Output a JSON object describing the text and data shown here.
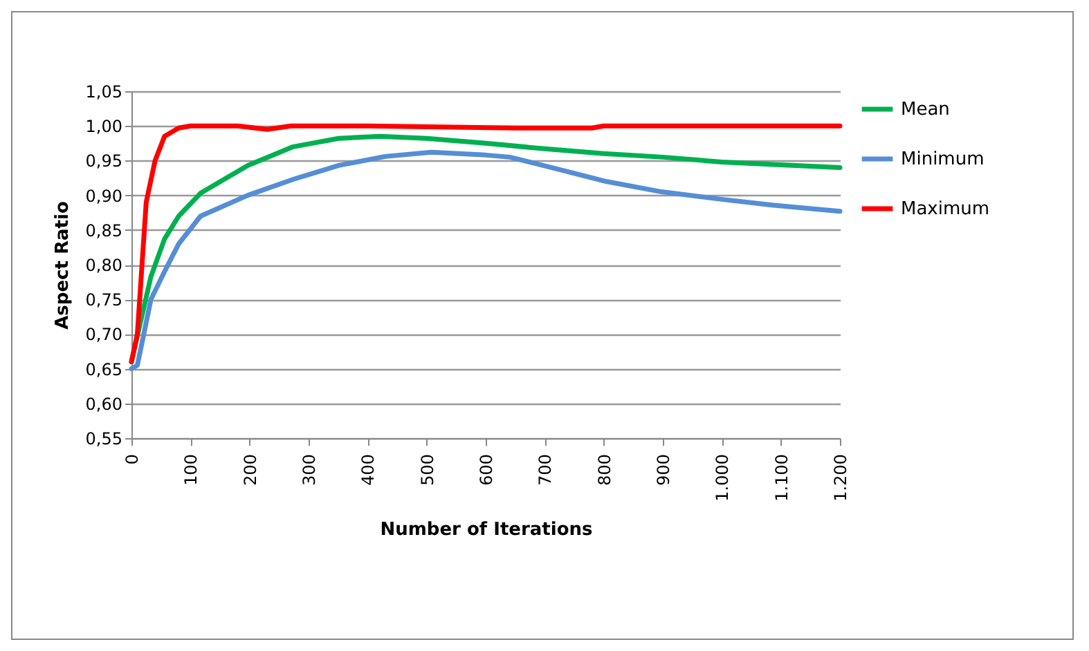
{
  "chart_data": {
    "type": "line",
    "xlabel": "Number of Iterations",
    "ylabel": "Aspect Ratio",
    "grid": "y",
    "legend": "right",
    "marker": "none",
    "line_style": "solid",
    "xlim": [
      0,
      1200
    ],
    "ylim": [
      0.55,
      1.05
    ],
    "xticks": [
      0,
      100,
      200,
      300,
      400,
      500,
      600,
      700,
      800,
      900,
      {
        "value": 1000,
        "label": "1.000"
      },
      {
        "value": 1100,
        "label": "1.100"
      },
      {
        "value": 1200,
        "label": "1.200"
      }
    ],
    "yticks": [
      {
        "value": 0.55,
        "label": "0,55"
      },
      {
        "value": 0.6,
        "label": "0,60"
      },
      {
        "value": 0.65,
        "label": "0,65"
      },
      {
        "value": 0.7,
        "label": "0,70"
      },
      {
        "value": 0.75,
        "label": "0,75"
      },
      {
        "value": 0.8,
        "label": "0,80"
      },
      {
        "value": 0.85,
        "label": "0,85"
      },
      {
        "value": 0.9,
        "label": "0,90"
      },
      {
        "value": 0.95,
        "label": "0,95"
      },
      {
        "value": 1.0,
        "label": "1,00"
      },
      {
        "value": 1.05,
        "label": "1,05"
      }
    ],
    "series": [
      {
        "name": "Mean",
        "color": "#00b050",
        "x": [
          0,
          33,
          56,
          80,
          117,
          197,
          274,
          351,
          420,
          500,
          600,
          700,
          800,
          900,
          1000,
          1100,
          1200
        ],
        "values": [
          0.66,
          0.783,
          0.837,
          0.87,
          0.903,
          0.943,
          0.97,
          0.982,
          0.985,
          0.982,
          0.975,
          0.967,
          0.96,
          0.955,
          0.948,
          0.944,
          0.94
        ]
      },
      {
        "name": "Minimum",
        "color": "#558ed5",
        "x": [
          0,
          10,
          33,
          56,
          80,
          117,
          197,
          274,
          351,
          430,
          508,
          600,
          641,
          711,
          804,
          898,
          992,
          1085,
          1200
        ],
        "values": [
          0.65,
          0.655,
          0.75,
          0.79,
          0.83,
          0.87,
          0.9,
          0.923,
          0.943,
          0.956,
          0.962,
          0.958,
          0.955,
          0.94,
          0.92,
          0.905,
          0.895,
          0.886,
          0.877
        ]
      },
      {
        "name": "Maximum",
        "color": "#ff0000",
        "x": [
          0,
          10,
          25,
          40,
          56,
          80,
          100,
          180,
          230,
          270,
          400,
          650,
          700,
          780,
          800,
          1000,
          1200
        ],
        "values": [
          0.66,
          0.7,
          0.89,
          0.95,
          0.985,
          0.997,
          1.0,
          1.0,
          0.995,
          1.0,
          1.0,
          0.997,
          0.997,
          0.997,
          1.0,
          1.0,
          1.0
        ]
      }
    ]
  }
}
